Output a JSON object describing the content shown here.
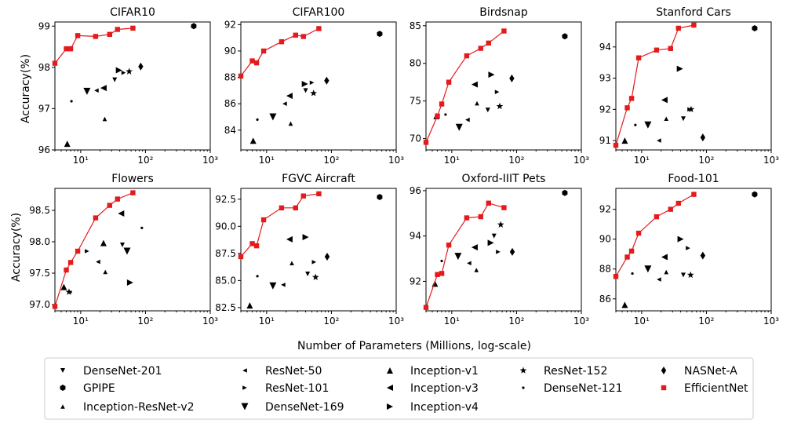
{
  "figure": {
    "ylabel": "Accuracy(%)",
    "xlabel": "Number of Parameters (Millions, log-scale)",
    "efficientnet_color": "#e41a1c",
    "marker_color": "#000000"
  },
  "legend": [
    {
      "name": "DenseNet-201",
      "marker": "tri-down"
    },
    {
      "name": "GPIPE",
      "marker": "hexagon"
    },
    {
      "name": "Inception-ResNet-v2",
      "marker": "tri-up-small"
    },
    {
      "name": "ResNet-50",
      "marker": "tri-left-small"
    },
    {
      "name": "ResNet-101",
      "marker": "tri-right-small"
    },
    {
      "name": "DenseNet-169",
      "marker": "tri-down-big"
    },
    {
      "name": "Inception-v1",
      "marker": "tri-up"
    },
    {
      "name": "Inception-v3",
      "marker": "tri-left"
    },
    {
      "name": "Inception-v4",
      "marker": "tri-right"
    },
    {
      "name": "ResNet-152",
      "marker": "star"
    },
    {
      "name": "DenseNet-121",
      "marker": "dot"
    },
    {
      "name": "NASNet-A",
      "marker": "diamond"
    },
    {
      "name": "EfficientNet",
      "marker": "square"
    }
  ],
  "chart_data": [
    {
      "type": "scatter",
      "title": "CIFAR10",
      "xscale": "log",
      "xlim": [
        4,
        1000
      ],
      "ylim": [
        96,
        99.1
      ],
      "yticks": [
        96,
        97,
        98,
        99
      ],
      "ytick_labels": [
        "96",
        "97",
        "98",
        "99"
      ],
      "xticks": [
        10,
        100,
        1000
      ],
      "xtick_labels": [
        "10¹",
        "10²",
        "10³"
      ],
      "efficientnet": {
        "x": [
          4,
          6,
          7,
          9,
          17,
          28,
          37,
          64
        ],
        "y": [
          98.1,
          98.45,
          98.45,
          98.77,
          98.75,
          98.8,
          98.92,
          98.95
        ]
      },
      "points": [
        {
          "model": "Inception-v1",
          "x": 6.2,
          "y": 96.15
        },
        {
          "model": "DenseNet-121",
          "x": 7.2,
          "y": 97.18
        },
        {
          "model": "DenseNet-169",
          "x": 12.5,
          "y": 97.42
        },
        {
          "model": "ResNet-50",
          "x": 17.5,
          "y": 97.44
        },
        {
          "model": "Inception-v3",
          "x": 22.5,
          "y": 97.5
        },
        {
          "model": "Inception-ResNet-v2",
          "x": 23.5,
          "y": 96.75
        },
        {
          "model": "DenseNet-201",
          "x": 33.5,
          "y": 97.7
        },
        {
          "model": "Inception-v4",
          "x": 39,
          "y": 97.93
        },
        {
          "model": "ResNet-101",
          "x": 46,
          "y": 97.87
        },
        {
          "model": "ResNet-152",
          "x": 56,
          "y": 97.9
        },
        {
          "model": "NASNet-A",
          "x": 84.5,
          "y": 98.02
        },
        {
          "model": "GPIPE",
          "x": 556,
          "y": 99.0
        }
      ]
    },
    {
      "type": "scatter",
      "title": "CIFAR100",
      "xscale": "log",
      "xlim": [
        4,
        1000
      ],
      "ylim": [
        82.5,
        92.2
      ],
      "yticks": [
        84,
        86,
        88,
        90,
        92
      ],
      "ytick_labels": [
        "84",
        "86",
        "88",
        "90",
        "92"
      ],
      "xticks": [
        10,
        100,
        1000
      ],
      "xtick_labels": [
        "10¹",
        "10²",
        "10³"
      ],
      "efficientnet": {
        "x": [
          4,
          6,
          7,
          9,
          17,
          28,
          37,
          64
        ],
        "y": [
          88.1,
          89.25,
          89.1,
          90,
          90.7,
          91.2,
          91.1,
          91.7
        ]
      },
      "points": [
        {
          "model": "Inception-v1",
          "x": 6.2,
          "y": 83.2
        },
        {
          "model": "DenseNet-121",
          "x": 7.2,
          "y": 84.8
        },
        {
          "model": "DenseNet-169",
          "x": 12.5,
          "y": 85.0
        },
        {
          "model": "ResNet-50",
          "x": 19,
          "y": 86.0
        },
        {
          "model": "Inception-v3",
          "x": 22.5,
          "y": 86.6
        },
        {
          "model": "Inception-ResNet-v2",
          "x": 23.5,
          "y": 84.5
        },
        {
          "model": "DenseNet-201",
          "x": 40,
          "y": 87.0
        },
        {
          "model": "Inception-v4",
          "x": 39,
          "y": 87.5
        },
        {
          "model": "ResNet-101",
          "x": 50,
          "y": 87.6
        },
        {
          "model": "ResNet-152",
          "x": 53,
          "y": 86.8
        },
        {
          "model": "NASNet-A",
          "x": 84.5,
          "y": 87.75
        },
        {
          "model": "GPIPE",
          "x": 556,
          "y": 91.3
        }
      ]
    },
    {
      "type": "scatter",
      "title": "Birdsnap",
      "xscale": "log",
      "xlim": [
        4,
        1000
      ],
      "ylim": [
        68.5,
        85.5
      ],
      "yticks": [
        70,
        75,
        80,
        85
      ],
      "ytick_labels": [
        "70",
        "75",
        "80",
        "85"
      ],
      "xticks": [
        10,
        100,
        1000
      ],
      "xtick_labels": [
        "10¹",
        "10²",
        "10³"
      ],
      "efficientnet": {
        "x": [
          4,
          6,
          7,
          9,
          17,
          28,
          37,
          64
        ],
        "y": [
          69.5,
          73,
          74.6,
          77.5,
          81,
          82,
          82.7,
          84.3
        ]
      },
      "points": [
        {
          "model": "Inception-v1",
          "x": 5.8,
          "y": 73.0
        },
        {
          "model": "DenseNet-121",
          "x": 8,
          "y": 73.2
        },
        {
          "model": "DenseNet-169",
          "x": 13,
          "y": 71.5
        },
        {
          "model": "ResNet-50",
          "x": 17.5,
          "y": 72.5
        },
        {
          "model": "Inception-v3",
          "x": 22.5,
          "y": 77.2
        },
        {
          "model": "Inception-ResNet-v2",
          "x": 24.5,
          "y": 74.7
        },
        {
          "model": "DenseNet-201",
          "x": 36,
          "y": 73.8
        },
        {
          "model": "Inception-v4",
          "x": 41,
          "y": 78.5
        },
        {
          "model": "ResNet-101",
          "x": 50,
          "y": 76.2
        },
        {
          "model": "ResNet-152",
          "x": 55,
          "y": 74.3
        },
        {
          "model": "NASNet-A",
          "x": 84.5,
          "y": 78.0
        },
        {
          "model": "GPIPE",
          "x": 556,
          "y": 83.6
        }
      ]
    },
    {
      "type": "scatter",
      "title": "Stanford Cars",
      "xscale": "log",
      "xlim": [
        4,
        1000
      ],
      "ylim": [
        90.7,
        94.8
      ],
      "yticks": [
        91,
        92,
        93,
        94
      ],
      "ytick_labels": [
        "91",
        "92",
        "93",
        "94"
      ],
      "xticks": [
        10,
        100,
        1000
      ],
      "xtick_labels": [
        "10¹",
        "10²",
        "10³"
      ],
      "efficientnet": {
        "x": [
          4,
          6,
          7,
          9,
          17,
          28,
          37,
          64
        ],
        "y": [
          90.85,
          92.05,
          92.35,
          93.65,
          93.9,
          93.95,
          94.6,
          94.7
        ]
      },
      "points": [
        {
          "model": "Inception-v1",
          "x": 5.5,
          "y": 91.0
        },
        {
          "model": "DenseNet-121",
          "x": 8,
          "y": 91.5
        },
        {
          "model": "DenseNet-169",
          "x": 12.5,
          "y": 91.5
        },
        {
          "model": "ResNet-50",
          "x": 18.5,
          "y": 91.0
        },
        {
          "model": "Inception-v3",
          "x": 22.5,
          "y": 92.3
        },
        {
          "model": "Inception-ResNet-v2",
          "x": 24,
          "y": 91.7
        },
        {
          "model": "DenseNet-201",
          "x": 44,
          "y": 91.7
        },
        {
          "model": "Inception-v4",
          "x": 39,
          "y": 93.3
        },
        {
          "model": "ResNet-101",
          "x": 55,
          "y": 92.0
        },
        {
          "model": "ResNet-152",
          "x": 58,
          "y": 92.0
        },
        {
          "model": "NASNet-A",
          "x": 88,
          "y": 91.1
        },
        {
          "model": "GPIPE",
          "x": 556,
          "y": 94.6
        }
      ]
    },
    {
      "type": "scatter",
      "title": "Flowers",
      "xscale": "log",
      "xlim": [
        4,
        1000
      ],
      "ylim": [
        96.9,
        98.85
      ],
      "yticks": [
        97.0,
        97.5,
        98.0,
        98.5
      ],
      "ytick_labels": [
        "97.0",
        "97.5",
        "98.0",
        "98.5"
      ],
      "xticks": [
        10,
        100,
        1000
      ],
      "xtick_labels": [
        "10¹",
        "10²",
        "10³"
      ],
      "efficientnet": {
        "x": [
          4,
          6,
          7,
          9,
          17,
          28,
          37,
          64
        ],
        "y": [
          96.97,
          97.55,
          97.67,
          97.85,
          98.38,
          98.58,
          98.68,
          98.78
        ]
      },
      "points": [
        {
          "model": "Inception-v1",
          "x": 5.5,
          "y": 97.28
        },
        {
          "model": "DenseNet-121",
          "x": 7,
          "y": 97.2
        },
        {
          "model": "ResNet-152",
          "x": 6.6,
          "y": 97.2
        },
        {
          "model": "ResNet-101",
          "x": 12.5,
          "y": 97.85
        },
        {
          "model": "ResNet-50",
          "x": 18.5,
          "y": 97.68
        },
        {
          "model": "Inception-ResNet-v2",
          "x": 24,
          "y": 97.52
        },
        {
          "model": "Inception-v1",
          "x": 22.5,
          "y": 97.98
        },
        {
          "model": "Inception-v3",
          "x": 42,
          "y": 98.45
        },
        {
          "model": "DenseNet-201",
          "x": 44,
          "y": 97.95
        },
        {
          "model": "DenseNet-169",
          "x": 52,
          "y": 97.85
        },
        {
          "model": "Inception-v4",
          "x": 58,
          "y": 97.35
        },
        {
          "model": "DenseNet-121",
          "x": 88,
          "y": 98.22
        }
      ]
    },
    {
      "type": "scatter",
      "title": "FGVC Aircraft",
      "xscale": "log",
      "xlim": [
        4,
        1000
      ],
      "ylim": [
        82.2,
        93.5
      ],
      "yticks": [
        82.5,
        85.0,
        87.5,
        90.0,
        92.5
      ],
      "ytick_labels": [
        "82.5",
        "85.0",
        "87.5",
        "90.0",
        "92.5"
      ],
      "xticks": [
        10,
        100,
        1000
      ],
      "xtick_labels": [
        "10¹",
        "10²",
        "10³"
      ],
      "efficientnet": {
        "x": [
          4,
          6,
          7,
          9,
          17,
          28,
          37,
          64
        ],
        "y": [
          87.2,
          88.4,
          88.2,
          90.6,
          91.7,
          91.7,
          92.8,
          93.0
        ]
      },
      "points": [
        {
          "model": "Inception-v1",
          "x": 5.5,
          "y": 82.7
        },
        {
          "model": "DenseNet-121",
          "x": 7.2,
          "y": 85.4
        },
        {
          "model": "DenseNet-169",
          "x": 12.5,
          "y": 84.5
        },
        {
          "model": "ResNet-50",
          "x": 18,
          "y": 84.6
        },
        {
          "model": "Inception-v3",
          "x": 22.5,
          "y": 88.8
        },
        {
          "model": "Inception-ResNet-v2",
          "x": 24.5,
          "y": 86.6
        },
        {
          "model": "Inception-v4",
          "x": 40,
          "y": 89.0
        },
        {
          "model": "DenseNet-201",
          "x": 43,
          "y": 85.6
        },
        {
          "model": "ResNet-101",
          "x": 54,
          "y": 86.7
        },
        {
          "model": "ResNet-152",
          "x": 57,
          "y": 85.3
        },
        {
          "model": "NASNet-A",
          "x": 86,
          "y": 87.2
        },
        {
          "model": "GPIPE",
          "x": 556,
          "y": 92.7
        }
      ]
    },
    {
      "type": "scatter",
      "title": "Oxford-IIIT Pets",
      "xscale": "log",
      "xlim": [
        4,
        1000
      ],
      "ylim": [
        90.7,
        96.1
      ],
      "yticks": [
        92,
        94,
        96
      ],
      "ytick_labels": [
        "92",
        "94",
        "96"
      ],
      "xticks": [
        10,
        100,
        1000
      ],
      "xtick_labels": [
        "10¹",
        "10²",
        "10³"
      ],
      "efficientnet": {
        "x": [
          4,
          6,
          7,
          9,
          17,
          28,
          37,
          64
        ],
        "y": [
          90.85,
          92.3,
          92.35,
          93.6,
          94.8,
          94.85,
          95.45,
          95.25
        ]
      },
      "points": [
        {
          "model": "Inception-v1",
          "x": 5.5,
          "y": 91.9
        },
        {
          "model": "DenseNet-121",
          "x": 7,
          "y": 92.9
        },
        {
          "model": "DenseNet-169",
          "x": 12.5,
          "y": 93.1
        },
        {
          "model": "ResNet-50",
          "x": 18.5,
          "y": 92.8
        },
        {
          "model": "Inception-v3",
          "x": 22.5,
          "y": 93.5
        },
        {
          "model": "Inception-ResNet-v2",
          "x": 24,
          "y": 92.5
        },
        {
          "model": "DenseNet-201",
          "x": 45,
          "y": 94.0
        },
        {
          "model": "Inception-v4",
          "x": 40,
          "y": 93.7
        },
        {
          "model": "ResNet-101",
          "x": 52,
          "y": 93.3
        },
        {
          "model": "ResNet-152",
          "x": 57,
          "y": 94.5
        },
        {
          "model": "NASNet-A",
          "x": 86,
          "y": 93.3
        },
        {
          "model": "GPIPE",
          "x": 556,
          "y": 95.9
        }
      ]
    },
    {
      "type": "scatter",
      "title": "Food-101",
      "xscale": "log",
      "xlim": [
        4,
        1000
      ],
      "ylim": [
        85.2,
        93.4
      ],
      "yticks": [
        86,
        88,
        90,
        92
      ],
      "ytick_labels": [
        "86",
        "88",
        "90",
        "92"
      ],
      "xticks": [
        10,
        100,
        1000
      ],
      "xtick_labels": [
        "10¹",
        "10²",
        "10³"
      ],
      "efficientnet": {
        "x": [
          4,
          6,
          7,
          9,
          17,
          28,
          37,
          64
        ],
        "y": [
          87.5,
          88.8,
          89.2,
          90.4,
          91.5,
          92.0,
          92.4,
          93.0
        ]
      },
      "points": [
        {
          "model": "Inception-v1",
          "x": 5.5,
          "y": 85.6
        },
        {
          "model": "DenseNet-121",
          "x": 7.2,
          "y": 87.7
        },
        {
          "model": "DenseNet-169",
          "x": 12.5,
          "y": 88.0
        },
        {
          "model": "ResNet-50",
          "x": 18.5,
          "y": 87.3
        },
        {
          "model": "Inception-v3",
          "x": 22.5,
          "y": 88.8
        },
        {
          "model": "Inception-ResNet-v2",
          "x": 24,
          "y": 87.8
        },
        {
          "model": "Inception-v4",
          "x": 40,
          "y": 90.0
        },
        {
          "model": "DenseNet-201",
          "x": 44,
          "y": 87.6
        },
        {
          "model": "ResNet-101",
          "x": 52,
          "y": 89.4
        },
        {
          "model": "ResNet-152",
          "x": 57,
          "y": 87.6
        },
        {
          "model": "NASNet-A",
          "x": 88,
          "y": 88.9
        },
        {
          "model": "GPIPE",
          "x": 556,
          "y": 93.0
        }
      ]
    }
  ]
}
